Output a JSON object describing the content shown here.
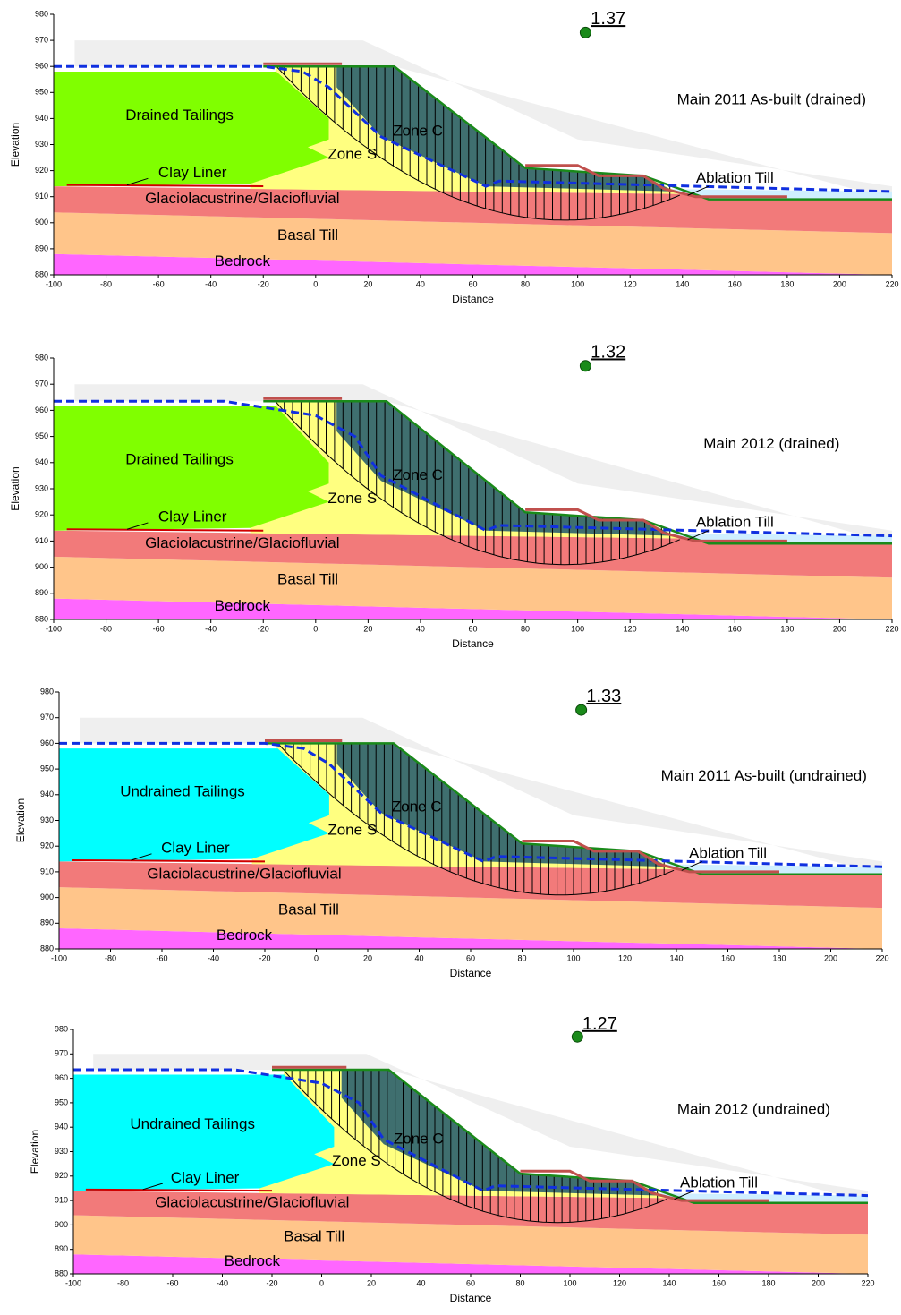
{
  "chart_data": [
    {
      "type": "section",
      "title": "Main 2011 As-built (drained)",
      "factor_of_safety": 1.37,
      "xlabel": "Distance",
      "ylabel": "Elevation",
      "xlim": [
        -100,
        220
      ],
      "ylim": [
        880,
        980
      ],
      "xticks": [
        -100,
        -80,
        -60,
        -40,
        -20,
        0,
        20,
        40,
        60,
        80,
        100,
        120,
        140,
        160,
        180,
        200,
        220
      ],
      "yticks": [
        880,
        890,
        900,
        910,
        920,
        930,
        940,
        950,
        960,
        970,
        980
      ],
      "tailings_color": "#80ff00",
      "labels": [
        "Drained Tailings",
        "Zone C",
        "Zone S",
        "Clay Liner",
        "Ablation Till",
        "Glaciolacustrine/Glaciofluvial",
        "Basal Till",
        "Bedrock"
      ]
    },
    {
      "type": "section",
      "title": "Main 2012 (drained)",
      "factor_of_safety": 1.32,
      "xlabel": "Distance",
      "ylabel": "Elevation",
      "xlim": [
        -100,
        220
      ],
      "ylim": [
        880,
        980
      ],
      "xticks": [
        -100,
        -80,
        -60,
        -40,
        -20,
        0,
        20,
        40,
        60,
        80,
        100,
        120,
        140,
        160,
        180,
        200,
        220
      ],
      "yticks": [
        880,
        890,
        900,
        910,
        920,
        930,
        940,
        950,
        960,
        970,
        980
      ],
      "tailings_color": "#80ff00",
      "labels": [
        "Drained Tailings",
        "Zone C",
        "Zone S",
        "Clay Liner",
        "Ablation Till",
        "Glaciolacustrine/Glaciofluvial",
        "Basal Till",
        "Bedrock"
      ]
    },
    {
      "type": "section",
      "title": "Main 2011 As-built (undrained)",
      "factor_of_safety": 1.33,
      "xlabel": "Distance",
      "ylabel": "Elevation",
      "xlim": [
        -100,
        220
      ],
      "ylim": [
        880,
        980
      ],
      "xticks": [
        -100,
        -80,
        -60,
        -40,
        -20,
        0,
        20,
        40,
        60,
        80,
        100,
        120,
        140,
        160,
        180,
        200,
        220
      ],
      "yticks": [
        880,
        890,
        900,
        910,
        920,
        930,
        940,
        950,
        960,
        970,
        980
      ],
      "tailings_color": "#00ffff",
      "labels": [
        "Undrained Tailings",
        "Zone C",
        "Zone S",
        "Clay Liner",
        "Ablation Till",
        "Glaciolacustrine/Glaciofluvial",
        "Basal Till",
        "Bedrock"
      ]
    },
    {
      "type": "section",
      "title": "Main 2012 (undrained)",
      "factor_of_safety": 1.27,
      "xlabel": "Distance",
      "ylabel": "Elevation",
      "xlim": [
        -100,
        220
      ],
      "ylim": [
        880,
        980
      ],
      "xticks": [
        -100,
        -80,
        -60,
        -40,
        -20,
        0,
        20,
        40,
        60,
        80,
        100,
        120,
        140,
        160,
        180,
        200,
        220
      ],
      "yticks": [
        880,
        890,
        900,
        910,
        920,
        930,
        940,
        950,
        960,
        970,
        980
      ],
      "tailings_color": "#00ffff",
      "labels": [
        "Undrained Tailings",
        "Zone C",
        "Zone S",
        "Clay Liner",
        "Ablation Till",
        "Glaciolacustrine/Glaciofluvial",
        "Basal Till",
        "Bedrock"
      ]
    }
  ]
}
